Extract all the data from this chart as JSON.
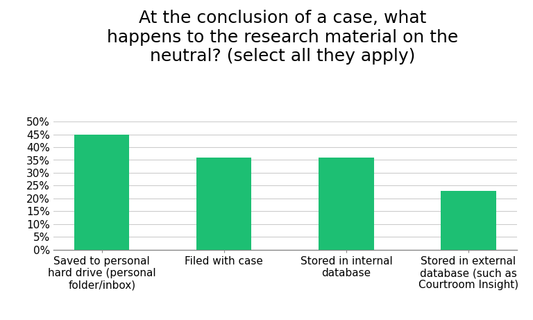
{
  "title": "At the conclusion of a case, what\nhappens to the research material on the\nneutral? (select all they apply)",
  "categories": [
    "Saved to personal\nhard drive (personal\nfolder/inbox)",
    "Filed with case",
    "Stored in internal\ndatabase",
    "Stored in external\ndatabase (such as\nCourtroom Insight)"
  ],
  "values": [
    0.45,
    0.36,
    0.36,
    0.23
  ],
  "bar_color": "#1DBF73",
  "ylim": [
    0,
    0.5
  ],
  "yticks": [
    0.0,
    0.05,
    0.1,
    0.15,
    0.2,
    0.25,
    0.3,
    0.35,
    0.4,
    0.45,
    0.5
  ],
  "ytick_labels": [
    "0%",
    "5%",
    "10%",
    "15%",
    "20%",
    "25%",
    "30%",
    "35%",
    "40%",
    "45%",
    "50%"
  ],
  "background_color": "#ffffff",
  "title_fontsize": 18,
  "tick_fontsize": 11,
  "xlabel_fontsize": 11,
  "grid_color": "#cccccc",
  "spine_color": "#888888"
}
